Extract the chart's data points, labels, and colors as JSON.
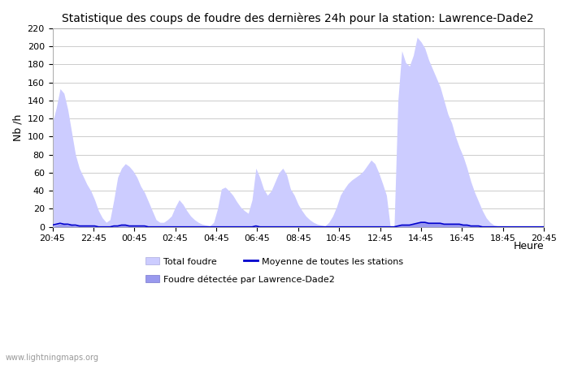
{
  "title": "Statistique des coups de foudre des dernières 24h pour la station: Lawrence-Dade2",
  "xlabel": "Heure",
  "ylabel": "Nb /h",
  "ylim": [
    0,
    220
  ],
  "yticks": [
    0,
    20,
    40,
    60,
    80,
    100,
    120,
    140,
    160,
    180,
    200,
    220
  ],
  "xtick_labels": [
    "20:45",
    "22:45",
    "00:45",
    "02:45",
    "04:45",
    "06:45",
    "08:45",
    "10:45",
    "12:45",
    "14:45",
    "16:45",
    "18:45",
    "20:45"
  ],
  "watermark": "www.lightningmaps.org",
  "legend_labels": [
    "Total foudre",
    "Moyenne de toutes les stations",
    "Foudre détectée par Lawrence-Dade2"
  ],
  "total_color": "#ccccff",
  "total_edge_color": "#aaaadd",
  "detected_color": "#9999ee",
  "detected_edge_color": "#7777cc",
  "mean_color": "#0000cc",
  "background_color": "#ffffff",
  "grid_color": "#cccccc",
  "total_foudre": [
    115,
    132,
    153,
    148,
    130,
    105,
    80,
    65,
    56,
    47,
    40,
    30,
    18,
    10,
    5,
    8,
    30,
    55,
    65,
    70,
    67,
    62,
    55,
    45,
    38,
    28,
    18,
    8,
    5,
    5,
    8,
    12,
    22,
    30,
    25,
    18,
    12,
    8,
    5,
    3,
    2,
    1,
    5,
    20,
    42,
    44,
    40,
    35,
    28,
    22,
    18,
    15,
    30,
    65,
    55,
    42,
    35,
    40,
    50,
    60,
    65,
    58,
    42,
    35,
    25,
    18,
    12,
    8,
    5,
    3,
    2,
    1,
    5,
    12,
    22,
    35,
    42,
    48,
    52,
    55,
    58,
    62,
    68,
    74,
    70,
    60,
    48,
    35,
    0,
    0,
    140,
    195,
    182,
    178,
    190,
    210,
    205,
    198,
    185,
    175,
    165,
    155,
    140,
    125,
    115,
    100,
    88,
    78,
    65,
    50,
    38,
    28,
    18,
    10,
    5,
    2,
    1,
    0,
    0,
    0,
    0,
    0,
    0,
    0,
    0,
    0,
    0,
    0,
    2
  ],
  "detected_foudre": [
    0,
    2,
    3,
    3,
    2,
    2,
    1,
    1,
    1,
    1,
    1,
    1,
    0,
    0,
    0,
    0,
    1,
    1,
    2,
    2,
    1,
    1,
    1,
    1,
    1,
    0,
    0,
    0,
    0,
    0,
    0,
    0,
    0,
    0,
    0,
    0,
    0,
    0,
    0,
    0,
    0,
    0,
    0,
    0,
    0,
    0,
    0,
    0,
    0,
    0,
    0,
    0,
    0,
    1,
    0,
    0,
    0,
    0,
    0,
    0,
    0,
    0,
    0,
    0,
    0,
    0,
    0,
    0,
    0,
    0,
    0,
    0,
    0,
    0,
    0,
    0,
    0,
    0,
    0,
    0,
    0,
    0,
    0,
    0,
    0,
    0,
    0,
    0,
    0,
    0,
    1,
    2,
    2,
    2,
    3,
    4,
    5,
    5,
    4,
    4,
    4,
    4,
    3,
    3,
    3,
    3,
    3,
    2,
    2,
    1,
    1,
    1,
    0,
    0,
    0,
    0,
    0,
    0,
    0,
    0,
    0,
    0,
    0,
    0,
    0,
    0,
    0,
    0,
    0
  ],
  "mean_foudre": [
    2,
    3,
    4,
    3,
    3,
    2,
    2,
    1,
    1,
    1,
    1,
    1,
    0,
    0,
    0,
    0,
    1,
    1,
    2,
    2,
    1,
    1,
    1,
    1,
    1,
    0,
    0,
    0,
    0,
    0,
    0,
    0,
    0,
    0,
    0,
    0,
    0,
    0,
    0,
    0,
    0,
    0,
    0,
    0,
    0,
    0,
    0,
    0,
    0,
    0,
    0,
    0,
    0,
    1,
    0,
    0,
    0,
    0,
    0,
    0,
    0,
    0,
    0,
    0,
    0,
    0,
    0,
    0,
    0,
    0,
    0,
    0,
    0,
    0,
    0,
    0,
    0,
    0,
    0,
    0,
    0,
    0,
    0,
    0,
    0,
    0,
    0,
    0,
    0,
    0,
    1,
    2,
    2,
    2,
    3,
    4,
    5,
    5,
    4,
    4,
    4,
    4,
    3,
    3,
    3,
    3,
    3,
    2,
    2,
    1,
    1,
    1,
    0,
    0,
    0,
    0,
    0,
    0,
    0,
    0,
    0,
    0,
    0,
    0,
    0,
    0,
    0,
    0,
    0
  ]
}
